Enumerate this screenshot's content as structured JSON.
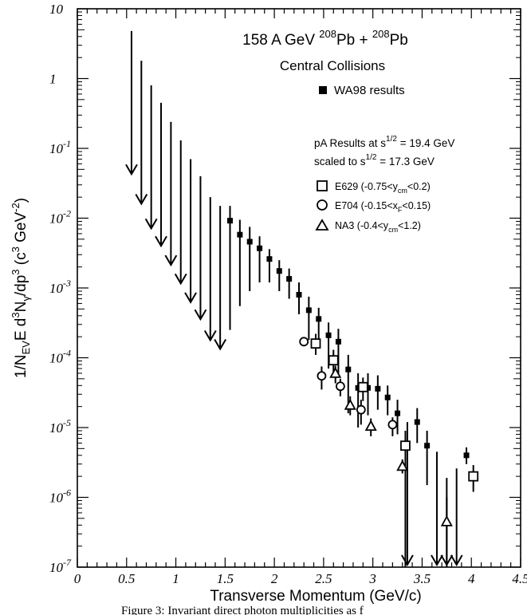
{
  "chart_data": {
    "type": "scatter",
    "title": "158 A GeV 208Pb + 208Pb",
    "title_parts": {
      "pre": "158 A GeV ",
      "mass1": "208",
      "el1": "Pb + ",
      "mass2": "208",
      "el2": "Pb"
    },
    "subtitle": "Central Collisions",
    "xlabel": "Transverse Momentum (GeV/c)",
    "ylabel_parts": {
      "a": "1/N",
      "a_sub": "EV",
      "b": "E d",
      "b_sup": "3",
      "c": "N",
      "c_sub": "γ",
      "d": "/dp",
      "d_sup": "3",
      "e": "  (c",
      "e_sup": "3",
      "f": " GeV",
      "f_sup": "-2",
      "g": ")"
    },
    "xlim": [
      0,
      4.5
    ],
    "ylim": [
      1e-07,
      10
    ],
    "yscale": "log",
    "x_ticks": [
      "0",
      "0.5",
      "1",
      "1.5",
      "2",
      "2.5",
      "3",
      "3.5",
      "4",
      "4.5"
    ],
    "y_ticks": [
      {
        "base": "10",
        "exp": ""
      },
      {
        "base": "1",
        "exp": ""
      },
      {
        "base": "10",
        "exp": "-1"
      },
      {
        "base": "10",
        "exp": "-2"
      },
      {
        "base": "10",
        "exp": "-3"
      },
      {
        "base": "10",
        "exp": "-4"
      },
      {
        "base": "10",
        "exp": "-5"
      },
      {
        "base": "10",
        "exp": "-6"
      },
      {
        "base": "10",
        "exp": "-7"
      }
    ],
    "legend_wa98": "WA98 results",
    "pa_header1": {
      "text": "pA Results at s",
      "sup": "1/2",
      "rest": " = 19.4 GeV"
    },
    "pa_header2": {
      "text": "scaled to  s",
      "sup": "1/2",
      "rest": " = 17.3 GeV"
    },
    "legend_pa": [
      {
        "marker": "square",
        "name": "E629",
        "pre": " (-0.75<y",
        "sub": "cm",
        "post": "<0.2)"
      },
      {
        "marker": "circle",
        "name": "E704",
        "pre": " (-0.15<x",
        "sub": "F",
        "post": "<0.15)"
      },
      {
        "marker": "triangle",
        "name": "NA3",
        "pre": " (-0.4<y",
        "sub": "cm",
        "post": "<1.2)"
      }
    ],
    "footer_text": "Figure 3:  Invariant direct photon multiplicities as f",
    "upper_limits": [
      {
        "x": 0.55,
        "y": 4.8
      },
      {
        "x": 0.65,
        "y": 1.8
      },
      {
        "x": 0.75,
        "y": 0.8
      },
      {
        "x": 0.85,
        "y": 0.45
      },
      {
        "x": 0.95,
        "y": 0.24
      },
      {
        "x": 1.05,
        "y": 0.13
      },
      {
        "x": 1.15,
        "y": 0.07
      },
      {
        "x": 1.25,
        "y": 0.04
      },
      {
        "x": 1.35,
        "y": 0.02
      },
      {
        "x": 1.45,
        "y": 0.015
      },
      {
        "x": 3.35,
        "y": 1.2e-05
      },
      {
        "x": 3.65,
        "y": 4.5e-06
      },
      {
        "x": 3.75,
        "y": 1.9e-06
      },
      {
        "x": 3.85,
        "y": 2.6e-06
      }
    ],
    "series": [
      {
        "name": "WA98 results",
        "marker": "filled-square",
        "points": [
          {
            "x": 1.55,
            "y": 0.0092,
            "lo": 0.00025,
            "hi": 0.015
          },
          {
            "x": 1.65,
            "y": 0.0058,
            "lo": 0.00055,
            "hi": 0.0095
          },
          {
            "x": 1.75,
            "y": 0.0046,
            "lo": 0.0009,
            "hi": 0.0075
          },
          {
            "x": 1.85,
            "y": 0.0037,
            "lo": 0.0012,
            "hi": 0.0055
          },
          {
            "x": 1.95,
            "y": 0.0026,
            "lo": 0.0012,
            "hi": 0.0036
          },
          {
            "x": 2.05,
            "y": 0.00175,
            "lo": 0.0009,
            "hi": 0.0025
          },
          {
            "x": 2.15,
            "y": 0.00135,
            "lo": 0.0007,
            "hi": 0.0019
          },
          {
            "x": 2.25,
            "y": 0.0008,
            "lo": 0.00042,
            "hi": 0.0012
          },
          {
            "x": 2.35,
            "y": 0.00048,
            "lo": 0.00018,
            "hi": 0.00075
          },
          {
            "x": 2.45,
            "y": 0.00036,
            "lo": 0.00015,
            "hi": 0.00052
          },
          {
            "x": 2.55,
            "y": 0.00021,
            "lo": 7e-05,
            "hi": 0.00032
          },
          {
            "x": 2.65,
            "y": 0.00017,
            "lo": 6e-05,
            "hi": 0.00026
          },
          {
            "x": 2.75,
            "y": 6.8e-05,
            "lo": 1.6e-05,
            "hi": 0.00011
          },
          {
            "x": 2.85,
            "y": 3.7e-05,
            "lo": 1e-05,
            "hi": 6e-05
          },
          {
            "x": 2.95,
            "y": 3.7e-05,
            "lo": 1.5e-05,
            "hi": 6e-05
          },
          {
            "x": 3.05,
            "y": 3.6e-05,
            "lo": 1.8e-05,
            "hi": 5.6e-05
          },
          {
            "x": 3.15,
            "y": 2.7e-05,
            "lo": 1.5e-05,
            "hi": 4e-05
          },
          {
            "x": 3.25,
            "y": 1.6e-05,
            "lo": 8e-06,
            "hi": 2.5e-05
          },
          {
            "x": 3.45,
            "y": 1.2e-05,
            "lo": 6e-06,
            "hi": 1.9e-05
          },
          {
            "x": 3.55,
            "y": 5.5e-06,
            "lo": 1.5e-06,
            "hi": 9e-06
          },
          {
            "x": 3.95,
            "y": 4e-06,
            "lo": 3e-06,
            "hi": 5.2e-06
          }
        ]
      },
      {
        "name": "E629",
        "marker": "square",
        "points": [
          {
            "x": 2.42,
            "y": 0.00016,
            "lo": 0.00011,
            "hi": 0.00022
          },
          {
            "x": 2.6,
            "y": 9.2e-05,
            "lo": 6e-05,
            "hi": 0.00013
          },
          {
            "x": 2.9,
            "y": 3.8e-05,
            "lo": 2.4e-05,
            "hi": 5.2e-05
          },
          {
            "x": 3.33,
            "y": 5.5e-06,
            "lo": 1e-07,
            "hi": 9e-06
          },
          {
            "x": 4.02,
            "y": 2e-06,
            "lo": 1.2e-06,
            "hi": 2.9e-06
          }
        ]
      },
      {
        "name": "E704",
        "marker": "circle",
        "points": [
          {
            "x": 2.3,
            "y": 0.00017,
            "lo": 0.00015,
            "hi": 0.00019
          },
          {
            "x": 2.48,
            "y": 5.5e-05,
            "lo": 3.5e-05,
            "hi": 7.5e-05
          },
          {
            "x": 2.67,
            "y": 3.9e-05,
            "lo": 2.8e-05,
            "hi": 5e-05
          },
          {
            "x": 2.88,
            "y": 1.8e-05,
            "lo": 1.1e-05,
            "hi": 2.5e-05
          },
          {
            "x": 3.2,
            "y": 1.1e-05,
            "lo": 7.5e-06,
            "hi": 1.4e-05
          }
        ]
      },
      {
        "name": "NA3",
        "marker": "triangle",
        "points": [
          {
            "x": 2.62,
            "y": 6e-05,
            "lo": 4.3e-05,
            "hi": 7.7e-05
          },
          {
            "x": 2.77,
            "y": 2.1e-05,
            "lo": 1.5e-05,
            "hi": 2.8e-05
          },
          {
            "x": 2.98,
            "y": 1.05e-05,
            "lo": 7.5e-06,
            "hi": 1.35e-05
          },
          {
            "x": 3.3,
            "y": 2.8e-06,
            "lo": 2.2e-06,
            "hi": 3.5e-06
          },
          {
            "x": 3.75,
            "y": 4.5e-07,
            "lo": 1e-07,
            "hi": 1e-06
          }
        ]
      }
    ]
  }
}
